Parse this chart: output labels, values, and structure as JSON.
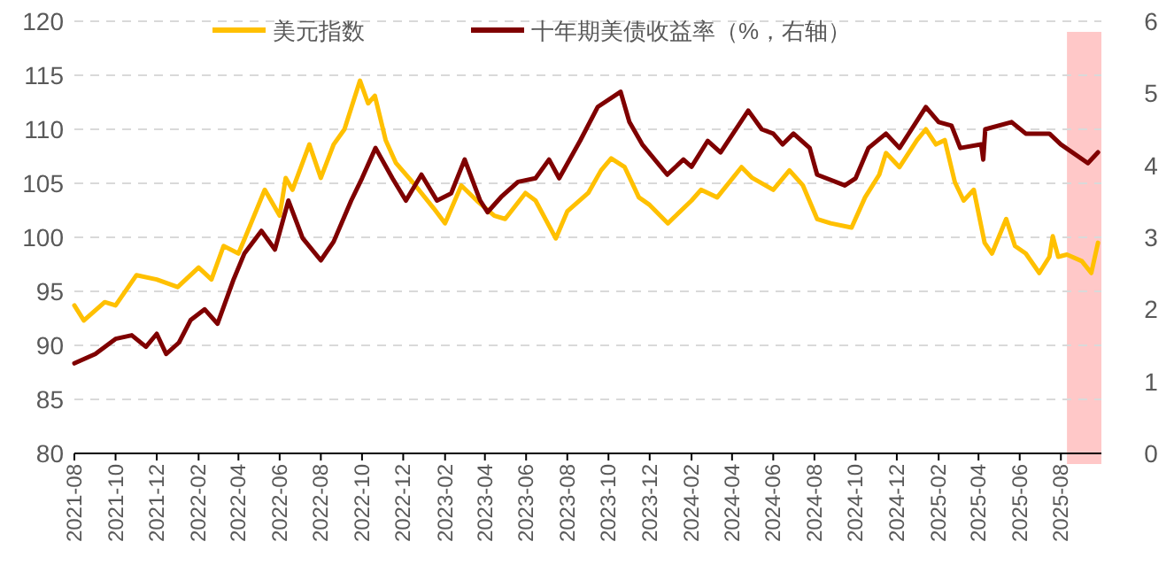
{
  "chart_data": {
    "type": "line",
    "legend": "top",
    "grid": "y",
    "xlim": [
      "2021-08-01",
      "2025-09-30"
    ],
    "xticks": [
      "2021-08",
      "2021-10",
      "2021-12",
      "2022-02",
      "2022-04",
      "2022-06",
      "2022-08",
      "2022-10",
      "2022-12",
      "2023-02",
      "2023-04",
      "2023-06",
      "2023-08",
      "2023-10",
      "2023-12",
      "2024-02",
      "2024-04",
      "2024-06",
      "2024-08",
      "2024-10",
      "2024-12",
      "2025-02",
      "2025-04",
      "2025-06",
      "2025-08"
    ],
    "ylim": [
      80,
      120
    ],
    "yticks": [
      80,
      85,
      90,
      95,
      100,
      105,
      110,
      115,
      120
    ],
    "y2lim": [
      0,
      6
    ],
    "y2ticks": [
      0,
      1,
      2,
      3,
      4,
      5,
      6
    ],
    "bands": [
      {
        "axis": "x",
        "from": "2025-08-10",
        "to": "2025-09-30",
        "color": "#ffc8c8"
      }
    ],
    "series": [
      {
        "name": "美元指数",
        "color": "#ffc000",
        "x": [
          "2021-08-01",
          "2021-08-15",
          "2021-09-15",
          "2021-10-01",
          "2021-11-01",
          "2021-12-01",
          "2022-01-01",
          "2022-02-01",
          "2022-02-20",
          "2022-03-10",
          "2022-04-01",
          "2022-04-15",
          "2022-05-10",
          "2022-06-01",
          "2022-06-10",
          "2022-06-20",
          "2022-07-15",
          "2022-08-01",
          "2022-08-20",
          "2022-09-05",
          "2022-09-28",
          "2022-10-10",
          "2022-10-20",
          "2022-11-05",
          "2022-11-20",
          "2022-12-15",
          "2023-01-15",
          "2023-02-01",
          "2023-02-25",
          "2023-03-20",
          "2023-04-15",
          "2023-05-01",
          "2023-05-31",
          "2023-06-15",
          "2023-07-15",
          "2023-08-01",
          "2023-09-01",
          "2023-09-20",
          "2023-10-05",
          "2023-10-25",
          "2023-11-15",
          "2023-12-01",
          "2023-12-28",
          "2024-02-01",
          "2024-02-15",
          "2024-03-10",
          "2024-04-15",
          "2024-05-01",
          "2024-06-01",
          "2024-06-25",
          "2024-07-15",
          "2024-08-05",
          "2024-08-25",
          "2024-09-25",
          "2024-10-15",
          "2024-11-05",
          "2024-11-15",
          "2024-12-05",
          "2024-12-31",
          "2025-01-13",
          "2025-01-28",
          "2025-02-10",
          "2025-02-25",
          "2025-03-10",
          "2025-03-25",
          "2025-04-10",
          "2025-04-21",
          "2025-05-12",
          "2025-05-25",
          "2025-06-10",
          "2025-06-30",
          "2025-07-15",
          "2025-07-20",
          "2025-07-28",
          "2025-08-10",
          "2025-09-01",
          "2025-09-15",
          "2025-09-25"
        ],
        "values": [
          93.7,
          92.3,
          94,
          93.7,
          96.5,
          96.1,
          95.4,
          97.2,
          96.1,
          99.2,
          98.5,
          100.6,
          104.4,
          102,
          105.5,
          104.4,
          108.6,
          105.5,
          108.6,
          110,
          114.5,
          112.4,
          113.1,
          109,
          106.9,
          105.1,
          102.7,
          101.3,
          104.8,
          103.4,
          102,
          101.7,
          104.1,
          103.4,
          99.9,
          102.4,
          104.1,
          106.2,
          107.3,
          106.5,
          103.7,
          103,
          101.3,
          103.4,
          104.4,
          103.7,
          106.5,
          105.5,
          104.4,
          106.2,
          104.8,
          101.7,
          101.3,
          100.9,
          103.7,
          105.8,
          107.8,
          106.5,
          109,
          110,
          108.6,
          109,
          105.1,
          103.4,
          104.4,
          99.5,
          98.5,
          101.7,
          99.2,
          98.5,
          96.7,
          98.2,
          100.1,
          98.2,
          98.4,
          97.8,
          96.7,
          99.5
        ]
      },
      {
        "name": "十年期美债收益率（%，右轴）",
        "color": "#7f0000",
        "axis": "y2",
        "x": [
          "2021-08-01",
          "2021-09-01",
          "2021-10-01",
          "2021-10-25",
          "2021-11-15",
          "2021-12-01",
          "2021-12-15",
          "2022-01-03",
          "2022-01-20",
          "2022-02-10",
          "2022-03-01",
          "2022-03-25",
          "2022-04-10",
          "2022-05-05",
          "2022-05-25",
          "2022-06-14",
          "2022-07-05",
          "2022-08-01",
          "2022-08-20",
          "2022-09-15",
          "2022-10-01",
          "2022-10-21",
          "2022-11-15",
          "2022-12-05",
          "2022-12-28",
          "2023-01-20",
          "2023-02-10",
          "2023-03-02",
          "2023-03-25",
          "2023-04-05",
          "2023-04-25",
          "2023-05-20",
          "2023-06-15",
          "2023-07-05",
          "2023-07-20",
          "2023-08-20",
          "2023-09-15",
          "2023-10-19",
          "2023-11-01",
          "2023-11-20",
          "2023-12-27",
          "2024-01-20",
          "2024-02-01",
          "2024-02-25",
          "2024-03-15",
          "2024-04-25",
          "2024-05-15",
          "2024-06-01",
          "2024-06-15",
          "2024-07-01",
          "2024-07-25",
          "2024-08-05",
          "2024-09-15",
          "2024-10-01",
          "2024-10-20",
          "2024-11-15",
          "2024-12-05",
          "2025-01-13",
          "2025-02-01",
          "2025-02-20",
          "2025-03-05",
          "2025-04-05",
          "2025-04-08",
          "2025-04-11",
          "2025-05-20",
          "2025-06-10",
          "2025-07-15",
          "2025-08-01",
          "2025-09-10",
          "2025-09-25"
        ],
        "values": [
          1.25,
          1.38,
          1.59,
          1.64,
          1.48,
          1.66,
          1.38,
          1.54,
          1.85,
          2.0,
          1.8,
          2.42,
          2.78,
          3.09,
          2.83,
          3.51,
          2.99,
          2.68,
          2.94,
          3.51,
          3.82,
          4.24,
          3.82,
          3.51,
          3.87,
          3.51,
          3.61,
          4.08,
          3.51,
          3.35,
          3.56,
          3.77,
          3.82,
          4.08,
          3.82,
          4.34,
          4.81,
          5.02,
          4.6,
          4.29,
          3.87,
          4.08,
          3.98,
          4.34,
          4.18,
          4.76,
          4.5,
          4.44,
          4.29,
          4.44,
          4.24,
          3.87,
          3.72,
          3.82,
          4.24,
          4.44,
          4.24,
          4.81,
          4.6,
          4.55,
          4.24,
          4.29,
          4.08,
          4.5,
          4.6,
          4.44,
          4.44,
          4.29,
          4.03,
          4.18
        ]
      }
    ]
  }
}
